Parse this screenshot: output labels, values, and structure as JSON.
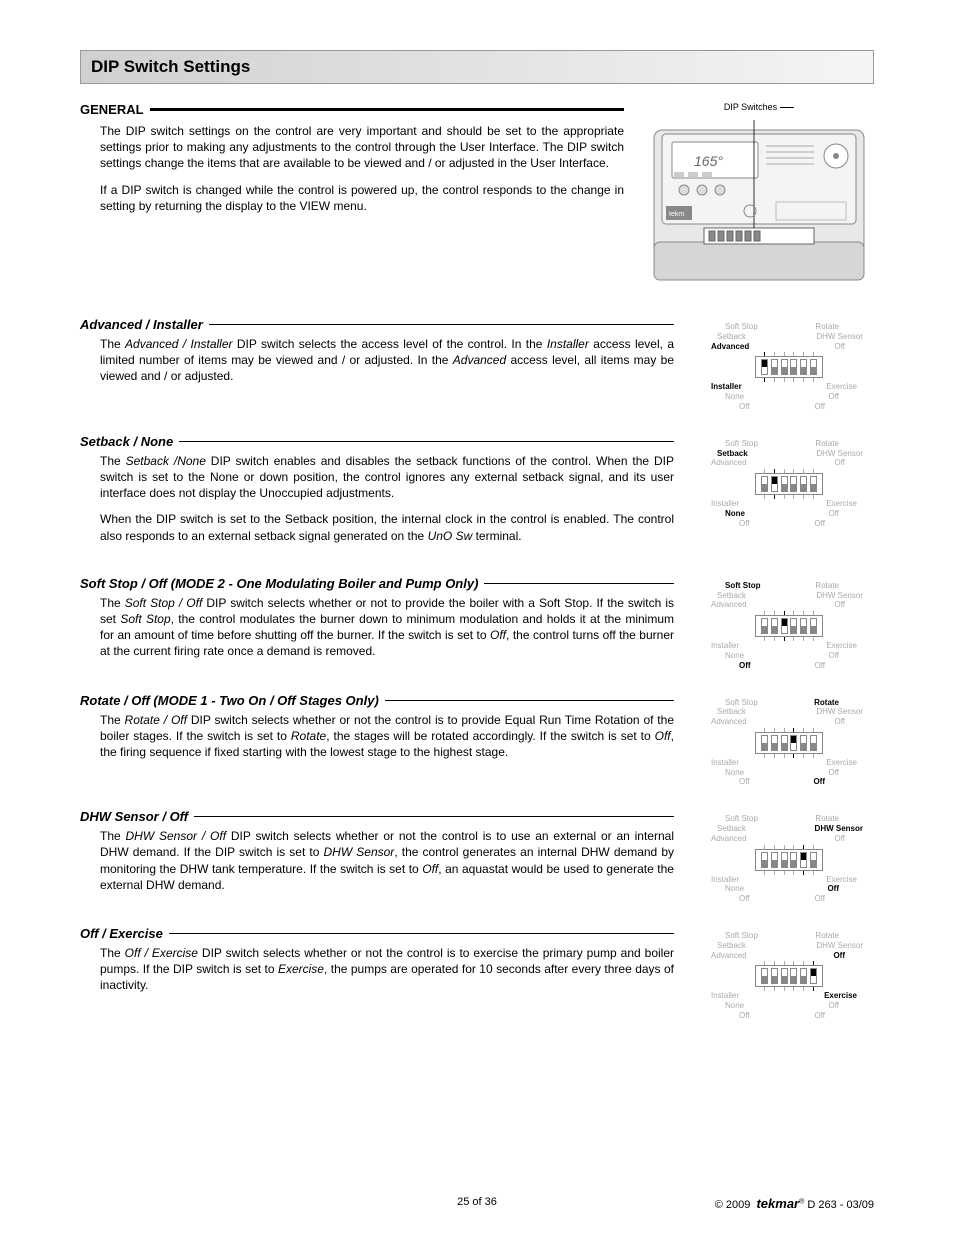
{
  "title": "DIP Switch Settings",
  "general": {
    "heading": "GENERAL",
    "p1": "The DIP switch settings on the control are very important and should be set to the appropriate settings prior to making any adjustments to the control through the User Interface. The DIP switch settings change the items that are available to be viewed and / or adjusted in the User Interface.",
    "p2": "If a DIP switch is changed while the control is powered up, the control responds to the change in setting by returning the display to the VIEW menu."
  },
  "product_label": "DIP Switches",
  "sections": [
    {
      "heading": "Advanced / Installer",
      "paragraphs": [
        "The <i>Advanced / Installer</i> DIP switch selects the access level of the control. In the <i>Installer</i> access level, a limited number of items may be viewed and / or adjusted. In the <i>Advanced</i> access level, all items may be viewed and / or adjusted."
      ],
      "active_top": "Advanced",
      "active_bot": "Installer",
      "active_index": 0
    },
    {
      "heading": "Setback / None",
      "paragraphs": [
        "The <i>Setback /None</i> DIP switch enables and disables the setback functions of the control. When the DIP switch is set to the None or down position, the control ignores any external setback signal, and its user interface does not display the Unoccupied adjustments.",
        "When the DIP switch is set to the Setback position, the internal clock in the control is enabled. The control also responds to an external setback signal generated on the <i>UnO Sw</i> terminal."
      ],
      "active_top": "Setback",
      "active_bot": "None",
      "active_index": 1
    },
    {
      "heading": "Soft Stop / Off (MODE 2 - One Modulating Boiler and Pump Only)",
      "paragraphs": [
        "The <i>Soft Stop / Off</i> DIP switch selects whether or not to provide the boiler with a Soft Stop. If the switch is set <i>Soft Stop</i>, the control modulates the burner down to minimum modulation and holds it at the minimum for an amount of time before shutting off the burner. If the switch is set to <i>Off</i>, the control turns off the burner at the current firing rate once a demand is removed."
      ],
      "active_top": "Soft Stop",
      "active_bot": "Off",
      "active_index": 2
    },
    {
      "heading": "Rotate / Off (MODE 1 - Two On / Off Stages Only)",
      "paragraphs": [
        "The <i>Rotate / Off</i> DIP switch selects whether or not the control is to provide Equal Run Time Rotation of the boiler stages. If the switch is set to <i>Rotate</i>, the stages will be rotated accordingly. If the switch is set to <i>Off</i>, the firing sequence if fixed starting with the lowest stage to the highest stage."
      ],
      "active_top": "Rotate",
      "active_bot": "Off",
      "active_index": 3
    },
    {
      "heading": "DHW Sensor / Off",
      "paragraphs": [
        "The <i>DHW Sensor / Off</i> DIP switch selects whether or not the control is to use an external or an internal DHW demand. If the DIP switch is set to <i>DHW Sensor</i>, the control generates an internal DHW demand by monitoring the DHW tank temperature. If the switch is set to <i>Off</i>, an aquastat would be used to generate the external DHW demand."
      ],
      "active_top": "DHW Sensor",
      "active_bot": "Off",
      "active_index": 4
    },
    {
      "heading": "Off / Exercise",
      "paragraphs": [
        "The <i>Off / Exercise</i> DIP switch selects whether or not the control is to exercise the primary pump and boiler pumps. If the DIP switch is set to <i>Exercise</i>, the pumps are operated for 10 seconds after every three days of inactivity."
      ],
      "active_top": "Off",
      "active_bot": "Exercise",
      "active_index": 5
    }
  ],
  "dip_labels": {
    "top": [
      "Advanced",
      "Setback",
      "Soft Stop",
      "Rotate",
      "DHW Sensor",
      "Off"
    ],
    "bot": [
      "Installer",
      "None",
      "Off",
      "Off",
      "Off",
      "Exercise"
    ]
  },
  "footer": {
    "page": "25 of 36",
    "copyright": "© 2009",
    "brand": "tekmar",
    "doc": "  D 263 - 03/09"
  }
}
